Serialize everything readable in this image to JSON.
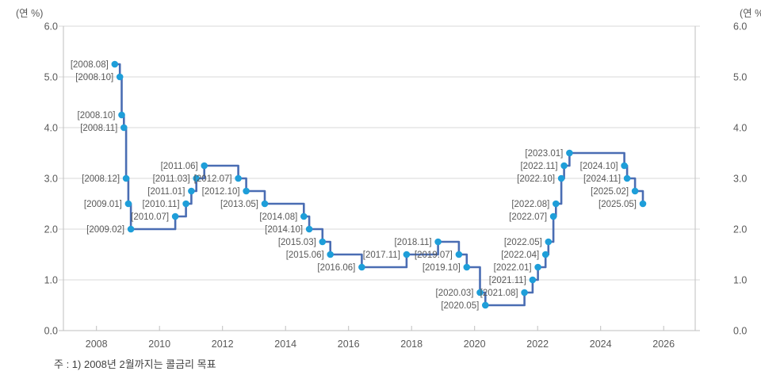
{
  "units": {
    "left": "(연 %)",
    "right": "(연 %)"
  },
  "note": {
    "text": "주 : 1) 2008년 2월까지는 콜금리 목표"
  },
  "colors": {
    "line": "#4a6db3",
    "marker": "#1e9ed9",
    "grid": "#d9d9d9",
    "axis": "#bfbfbf",
    "data_label": "#595959",
    "tick_label": "#595959",
    "note": "#404040"
  },
  "chart_data": {
    "type": "line",
    "subtype": "step-after",
    "title": "",
    "ylabel_unit": "(연 %)",
    "grid": true,
    "x_axis": {
      "ticks": [
        2008,
        2010,
        2012,
        2014,
        2016,
        2018,
        2020,
        2022,
        2024,
        2026
      ],
      "range": [
        2006.95,
        2027.0
      ]
    },
    "y_axis": {
      "ticks": [
        0,
        1,
        2,
        3,
        4,
        5,
        6
      ],
      "range": [
        0,
        6
      ],
      "decimals": 1,
      "mirrored_right": true
    },
    "points": [
      {
        "label": "[2008.08]",
        "x": 2008.58,
        "value": 5.25
      },
      {
        "label": "[2008.10]",
        "x": 2008.74,
        "value": 5.0
      },
      {
        "label": "[2008.10]",
        "x": 2008.8,
        "value": 4.25
      },
      {
        "label": "[2008.11]",
        "x": 2008.87,
        "value": 4.0
      },
      {
        "label": "[2008.12]",
        "x": 2008.94,
        "value": 3.0
      },
      {
        "label": "[2009.01]",
        "x": 2009.01,
        "value": 2.5
      },
      {
        "label": "[2009.02]",
        "x": 2009.09,
        "value": 2.0
      },
      {
        "label": "[2010.07]",
        "x": 2010.5,
        "value": 2.25
      },
      {
        "label": "[2010.11]",
        "x": 2010.84,
        "value": 2.5
      },
      {
        "label": "[2011.01]",
        "x": 2011.01,
        "value": 2.75
      },
      {
        "label": "[2011.03]",
        "x": 2011.17,
        "value": 3.0
      },
      {
        "label": "[2011.06]",
        "x": 2011.42,
        "value": 3.25
      },
      {
        "label": "[2012.07]",
        "x": 2012.5,
        "value": 3.0
      },
      {
        "label": "[2012.10]",
        "x": 2012.75,
        "value": 2.75
      },
      {
        "label": "[2013.05]",
        "x": 2013.34,
        "value": 2.5
      },
      {
        "label": "[2014.08]",
        "x": 2014.58,
        "value": 2.25
      },
      {
        "label": "[2014.10]",
        "x": 2014.75,
        "value": 2.0
      },
      {
        "label": "[2015.03]",
        "x": 2015.17,
        "value": 1.75
      },
      {
        "label": "[2015.06]",
        "x": 2015.42,
        "value": 1.5
      },
      {
        "label": "[2016.06]",
        "x": 2016.42,
        "value": 1.25
      },
      {
        "label": "[2017.11]",
        "x": 2017.84,
        "value": 1.5
      },
      {
        "label": "[2018.11]",
        "x": 2018.84,
        "value": 1.75
      },
      {
        "label": "[2019.07]",
        "x": 2019.5,
        "value": 1.5
      },
      {
        "label": "[2019.10]",
        "x": 2019.75,
        "value": 1.25
      },
      {
        "label": "[2020.03]",
        "x": 2020.17,
        "value": 0.75
      },
      {
        "label": "[2020.05]",
        "x": 2020.34,
        "value": 0.5
      },
      {
        "label": "[2021.08]",
        "x": 2021.58,
        "value": 0.75
      },
      {
        "label": "[2021.11]",
        "x": 2021.84,
        "value": 1.0
      },
      {
        "label": "[2022.01]",
        "x": 2022.01,
        "value": 1.25
      },
      {
        "label": "[2022.04]",
        "x": 2022.25,
        "value": 1.5
      },
      {
        "label": "[2022.05]",
        "x": 2022.34,
        "value": 1.75
      },
      {
        "label": "[2022.07]",
        "x": 2022.5,
        "value": 2.25
      },
      {
        "label": "[2022.08]",
        "x": 2022.58,
        "value": 2.5
      },
      {
        "label": "[2022.10]",
        "x": 2022.75,
        "value": 3.0
      },
      {
        "label": "[2022.11]",
        "x": 2022.84,
        "value": 3.25
      },
      {
        "label": "[2023.01]",
        "x": 2023.01,
        "value": 3.5
      },
      {
        "label": "[2024.10]",
        "x": 2024.75,
        "value": 3.25
      },
      {
        "label": "[2024.11]",
        "x": 2024.84,
        "value": 3.0
      },
      {
        "label": "[2025.02]",
        "x": 2025.09,
        "value": 2.75
      },
      {
        "label": "[2025.05]",
        "x": 2025.34,
        "value": 2.5
      }
    ]
  }
}
